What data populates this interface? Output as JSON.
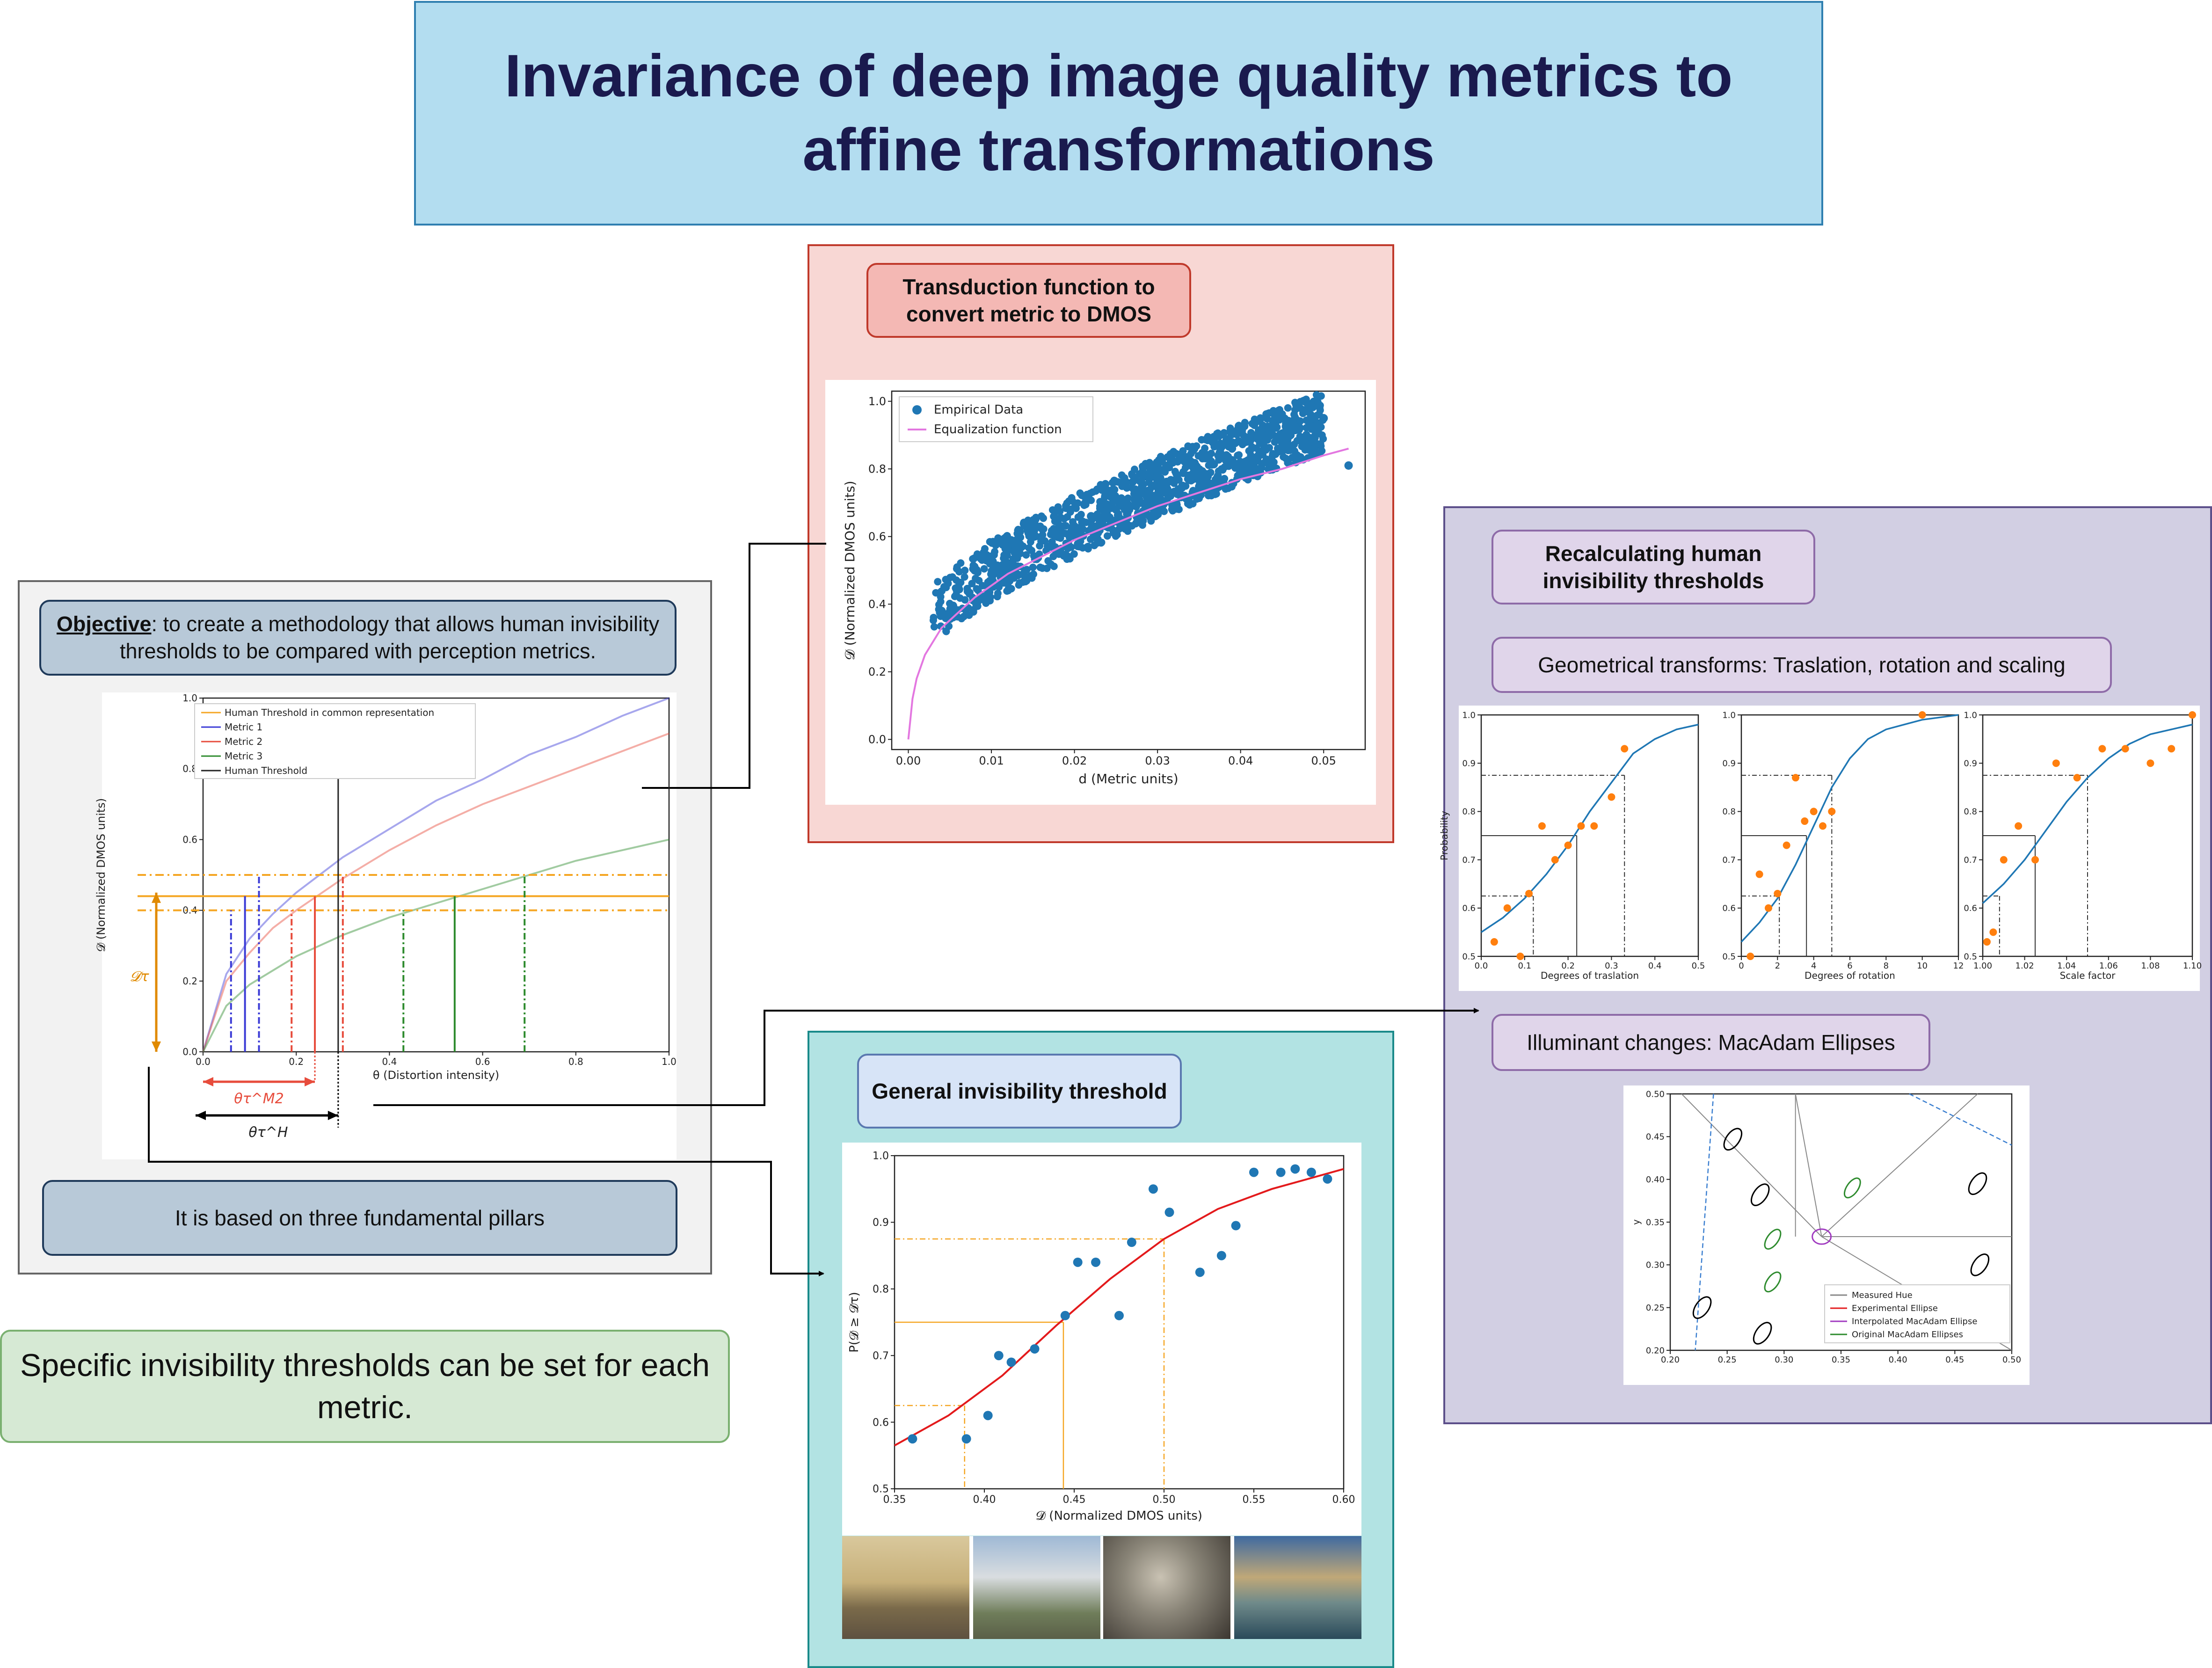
{
  "title": {
    "line1": "Invariance of deep image quality metrics to",
    "line2": "affine transformations"
  },
  "objective": {
    "bold": "Objective",
    "rest": ": to create a methodology that allows human invisibility thresholds to be compared with perception metrics."
  },
  "pillars": "It is based on three fundamental pillars",
  "specific": "Specific invisibility thresholds can be set for each metric.",
  "transduction": {
    "title": "Transduction function to convert metric to DMOS"
  },
  "general": {
    "title": "General invisibility threshold"
  },
  "recalc": {
    "title": "Recalculating human invisibility thresholds",
    "geom_title": "Geometrical transforms: Traslation, rotation and scaling",
    "illum_title": "Illuminant changes: MacAdam Ellipses"
  },
  "colors": {
    "empirical": "#1f77b4",
    "equalization": "#e377e0",
    "fit_red": "#e31a1c",
    "orange": "#ff7f0e",
    "threshold_orange": "#f5a623",
    "metric1": "#3b3bd6",
    "metric2": "#e74c3c",
    "metric3": "#2e8b2e"
  },
  "chart_data": [
    {
      "id": "objective-chart",
      "type": "line",
      "xlabel": "θ (Distortion intensity)",
      "ylabel": "𝓓 (Normalized DMOS units)",
      "xlim": [
        0,
        1.0
      ],
      "ylim": [
        0,
        1.0
      ],
      "xticks": [
        "0.0",
        "0.2",
        "0.4",
        "0.6",
        "0.8",
        "1.0"
      ],
      "yticks": [
        "0.0",
        "0.2",
        "0.4",
        "0.6",
        "0.8",
        "1.0"
      ],
      "legend": [
        "Human Threshold in common representation",
        "Metric 1",
        "Metric 2",
        "Metric 3",
        "Human Threshold"
      ],
      "legend_position": "top-left",
      "series": [
        {
          "name": "Metric 1",
          "values_fn": "sqrt",
          "x": [
            0,
            0.05,
            0.1,
            0.15,
            0.2,
            0.3,
            0.4,
            0.5,
            0.6,
            0.7,
            0.8,
            0.9,
            1.0
          ],
          "y": [
            0,
            0.22,
            0.32,
            0.39,
            0.45,
            0.55,
            0.63,
            0.71,
            0.77,
            0.84,
            0.89,
            0.95,
            1.0
          ]
        },
        {
          "name": "Metric 2",
          "x": [
            0,
            0.05,
            0.1,
            0.15,
            0.2,
            0.3,
            0.4,
            0.5,
            0.6,
            0.7,
            0.8,
            0.9,
            1.0
          ],
          "y": [
            0,
            0.2,
            0.28,
            0.35,
            0.4,
            0.49,
            0.57,
            0.64,
            0.7,
            0.75,
            0.8,
            0.85,
            0.9
          ]
        },
        {
          "name": "Metric 3",
          "x": [
            0,
            0.05,
            0.1,
            0.15,
            0.2,
            0.3,
            0.4,
            0.5,
            0.6,
            0.7,
            0.8,
            0.9,
            1.0
          ],
          "y": [
            0,
            0.13,
            0.19,
            0.23,
            0.27,
            0.33,
            0.38,
            0.42,
            0.46,
            0.5,
            0.54,
            0.57,
            0.6
          ]
        }
      ],
      "human_threshold_x": 0.29,
      "hlines": [
        0.5,
        0.44,
        0.4
      ],
      "annotations": [
        "𝓓τ",
        "θτ^M2",
        "θτ^H"
      ],
      "metric1_thresholds": [
        0.06,
        0.09,
        0.12
      ],
      "metric2_thresholds": [
        0.19,
        0.24,
        0.3
      ],
      "metric3_thresholds": [
        0.43,
        0.54,
        0.69
      ]
    },
    {
      "id": "transduction-chart",
      "type": "scatter",
      "xlabel": "d (Metric units)",
      "ylabel": "𝓓 (Normalized DMOS units)",
      "xlim": [
        -0.002,
        0.055
      ],
      "ylim": [
        -0.03,
        1.03
      ],
      "xticks": [
        "0.00",
        "0.01",
        "0.02",
        "0.03",
        "0.04",
        "0.05"
      ],
      "yticks": [
        "0.0",
        "0.2",
        "0.4",
        "0.6",
        "0.8",
        "1.0"
      ],
      "legend": [
        "Empirical Data",
        "Equalization function"
      ],
      "legend_position": "top-left",
      "equalization": {
        "x": [
          0,
          0.0005,
          0.001,
          0.002,
          0.004,
          0.008,
          0.012,
          0.016,
          0.02,
          0.025,
          0.03,
          0.035,
          0.04,
          0.045,
          0.05,
          0.053
        ],
        "y": [
          0,
          0.12,
          0.18,
          0.25,
          0.33,
          0.42,
          0.49,
          0.54,
          0.59,
          0.64,
          0.69,
          0.73,
          0.77,
          0.8,
          0.84,
          0.86
        ]
      },
      "empirical_sample": {
        "x": [
          0.004,
          0.006,
          0.008,
          0.01,
          0.012,
          0.015,
          0.018,
          0.02,
          0.022,
          0.025,
          0.028,
          0.03,
          0.033,
          0.036,
          0.04,
          0.043,
          0.046,
          0.05,
          0.053
        ],
        "y": [
          0.38,
          0.45,
          0.5,
          0.52,
          0.56,
          0.6,
          0.62,
          0.63,
          0.66,
          0.68,
          0.7,
          0.72,
          0.75,
          0.78,
          0.82,
          0.86,
          0.9,
          0.95,
          0.81
        ]
      }
    },
    {
      "id": "general-threshold-chart",
      "type": "scatter",
      "xlabel": "𝓓 (Normalized DMOS units)",
      "ylabel": "P(𝓓 ≥ 𝓓τ)",
      "xlim": [
        0.35,
        0.6
      ],
      "ylim": [
        0.5,
        1.0
      ],
      "xticks": [
        "0.35",
        "0.40",
        "0.45",
        "0.50",
        "0.55",
        "0.60"
      ],
      "yticks": [
        "0.5",
        "0.6",
        "0.7",
        "0.8",
        "0.9",
        "1.0"
      ],
      "points": {
        "x": [
          0.36,
          0.39,
          0.402,
          0.408,
          0.415,
          0.428,
          0.445,
          0.452,
          0.462,
          0.475,
          0.482,
          0.494,
          0.503,
          0.52,
          0.532,
          0.54,
          0.55,
          0.565,
          0.573,
          0.582,
          0.591
        ],
        "y": [
          0.575,
          0.575,
          0.61,
          0.7,
          0.69,
          0.71,
          0.76,
          0.84,
          0.84,
          0.76,
          0.87,
          0.95,
          0.915,
          0.825,
          0.85,
          0.895,
          0.975,
          0.975,
          0.98,
          0.975,
          0.965
        ]
      },
      "fit": {
        "x": [
          0.35,
          0.38,
          0.41,
          0.44,
          0.47,
          0.5,
          0.53,
          0.56,
          0.6
        ],
        "y": [
          0.565,
          0.61,
          0.67,
          0.745,
          0.815,
          0.875,
          0.92,
          0.95,
          0.98
        ]
      },
      "guides": [
        {
          "x": 0.389,
          "y": 0.625
        },
        {
          "x": 0.444,
          "y": 0.75
        },
        {
          "x": 0.5,
          "y": 0.875
        }
      ]
    },
    {
      "id": "translation-chart",
      "type": "scatter",
      "xlabel": "Degrees of traslation",
      "ylabel": "Probability",
      "xlim": [
        0,
        0.5
      ],
      "ylim": [
        0.5,
        1.0
      ],
      "xticks": [
        "0.0",
        "0.1",
        "0.2",
        "0.3",
        "0.4",
        "0.5"
      ],
      "yticks": [
        "0.5",
        "0.6",
        "0.7",
        "0.8",
        "0.9",
        "1.0"
      ],
      "points": {
        "x": [
          0.03,
          0.06,
          0.09,
          0.11,
          0.14,
          0.17,
          0.2,
          0.23,
          0.26,
          0.3,
          0.33
        ],
        "y": [
          0.53,
          0.6,
          0.5,
          0.63,
          0.77,
          0.7,
          0.73,
          0.77,
          0.77,
          0.83,
          0.93
        ]
      },
      "fit": {
        "x": [
          0,
          0.05,
          0.1,
          0.15,
          0.2,
          0.25,
          0.3,
          0.35,
          0.4,
          0.45,
          0.5
        ],
        "y": [
          0.55,
          0.58,
          0.62,
          0.67,
          0.73,
          0.8,
          0.86,
          0.92,
          0.95,
          0.97,
          0.98
        ]
      },
      "guides": [
        {
          "x": 0.12,
          "y": 0.625
        },
        {
          "x": 0.22,
          "y": 0.75
        },
        {
          "x": 0.33,
          "y": 0.875
        }
      ]
    },
    {
      "id": "rotation-chart",
      "type": "scatter",
      "xlabel": "Degrees of rotation",
      "ylabel": "",
      "xlim": [
        0,
        12
      ],
      "ylim": [
        0.5,
        1.0
      ],
      "xticks": [
        "0",
        "2",
        "4",
        "6",
        "8",
        "10",
        "12"
      ],
      "yticks": [
        "0.5",
        "0.6",
        "0.7",
        "0.8",
        "0.9",
        "1.0"
      ],
      "points": {
        "x": [
          0.5,
          1.0,
          1.5,
          2.0,
          2.5,
          3.0,
          3.5,
          4.0,
          4.5,
          5.0,
          10.0
        ],
        "y": [
          0.5,
          0.67,
          0.6,
          0.63,
          0.73,
          0.87,
          0.78,
          0.8,
          0.77,
          0.8,
          1.0
        ]
      },
      "fit": {
        "x": [
          0,
          1,
          2,
          3,
          4,
          5,
          6,
          7,
          8,
          10,
          12
        ],
        "y": [
          0.53,
          0.57,
          0.62,
          0.69,
          0.77,
          0.85,
          0.91,
          0.95,
          0.97,
          0.99,
          1.0
        ]
      },
      "guides": [
        {
          "x": 2.1,
          "y": 0.625
        },
        {
          "x": 3.6,
          "y": 0.75
        },
        {
          "x": 5.0,
          "y": 0.875
        }
      ]
    },
    {
      "id": "scaling-chart",
      "type": "scatter",
      "xlabel": "Scale factor",
      "ylabel": "",
      "xlim": [
        1.0,
        1.1
      ],
      "ylim": [
        0.5,
        1.0
      ],
      "xticks": [
        "1.00",
        "1.02",
        "1.04",
        "1.06",
        "1.08",
        "1.10"
      ],
      "yticks": [
        "0.5",
        "0.6",
        "0.7",
        "0.8",
        "0.9",
        "1.0"
      ],
      "points": {
        "x": [
          1.002,
          1.005,
          1.01,
          1.017,
          1.025,
          1.035,
          1.045,
          1.057,
          1.068,
          1.08,
          1.09,
          1.1
        ],
        "y": [
          0.53,
          0.55,
          0.7,
          0.77,
          0.7,
          0.9,
          0.87,
          0.93,
          0.93,
          0.9,
          0.93,
          1.0
        ]
      },
      "fit": {
        "x": [
          1.0,
          1.01,
          1.02,
          1.03,
          1.04,
          1.05,
          1.06,
          1.07,
          1.08,
          1.09,
          1.1
        ],
        "y": [
          0.61,
          0.65,
          0.7,
          0.76,
          0.82,
          0.87,
          0.91,
          0.94,
          0.96,
          0.97,
          0.98
        ]
      },
      "guides": [
        {
          "x": 1.008,
          "y": 0.625
        },
        {
          "x": 1.025,
          "y": 0.75
        },
        {
          "x": 1.05,
          "y": 0.875
        }
      ]
    },
    {
      "id": "macadam-chart",
      "type": "scatter",
      "xlabel": "",
      "ylabel": "y",
      "xlim": [
        0.2,
        0.5
      ],
      "ylim": [
        0.2,
        0.5
      ],
      "xticks": [
        "0.20",
        "0.25",
        "0.30",
        "0.35",
        "0.40",
        "0.45",
        "0.50"
      ],
      "yticks": [
        "0.20",
        "0.25",
        "0.30",
        "0.35",
        "0.40",
        "0.45",
        "0.50"
      ],
      "legend": [
        "Measured Hue",
        "Experimental Ellipse",
        "Interpolated MacAdam Ellipse",
        "Original MacAdam Ellipses"
      ],
      "legend_position": "bottom-right",
      "black_ellipses": [
        [
          0.255,
          0.447
        ],
        [
          0.279,
          0.382
        ],
        [
          0.228,
          0.25
        ],
        [
          0.281,
          0.22
        ],
        [
          0.47,
          0.395
        ],
        [
          0.472,
          0.3
        ]
      ],
      "green_ellipses": [
        [
          0.36,
          0.39
        ],
        [
          0.29,
          0.33
        ],
        [
          0.29,
          0.28
        ]
      ],
      "center": [
        0.333,
        0.333
      ]
    }
  ]
}
